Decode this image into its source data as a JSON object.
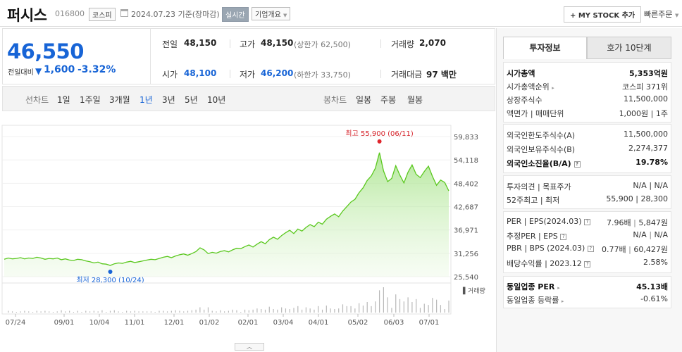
{
  "header": {
    "company_name": "퍼시스",
    "stock_code": "016800",
    "market": "코스피",
    "base_date": "2024.07.23 기준(장마감)",
    "realtime_label": "실시간",
    "company_info_label": "기업개요",
    "mystock_label": "+ MY STOCK 추가",
    "quick_order_label": "빠른주문"
  },
  "price": {
    "current": "46,550",
    "change_label": "전일대비",
    "change_arrow": "▼",
    "change_amount": "1,600",
    "change_pct": "-3.32%"
  },
  "quote": {
    "prev_close": {
      "label": "전일",
      "value": "48,150"
    },
    "high": {
      "label": "고가",
      "value": "48,150",
      "sub": "(상한가 62,500)"
    },
    "volume": {
      "label": "거래량",
      "value": "2,070"
    },
    "open": {
      "label": "시가",
      "value": "48,100"
    },
    "low": {
      "label": "저가",
      "value": "46,200",
      "sub": "(하한가 33,750)"
    },
    "trade_amount": {
      "label": "거래대금",
      "value": "97 백만"
    }
  },
  "period_tabs": {
    "line_label": "선차트",
    "line": [
      "1일",
      "1주일",
      "3개월",
      "1년",
      "3년",
      "5년",
      "10년"
    ],
    "active": "1년",
    "candle_label": "봉차트",
    "candle": [
      "일봉",
      "주봉",
      "월봉"
    ]
  },
  "chart_data": {
    "type": "area",
    "y_ticks": [
      "59,833",
      "54,118",
      "48,402",
      "42,687",
      "36,971",
      "31,256",
      "25,540"
    ],
    "ylim": [
      25540,
      59833
    ],
    "x_ticks": [
      "07/24",
      "09/01",
      "10/04",
      "11/01",
      "12/01",
      "01/02",
      "02/01",
      "03/04",
      "04/01",
      "05/02",
      "06/03",
      "07/01"
    ],
    "high_annotation": "최고 55,900 (06/11)",
    "low_annotation": "최저 28,300 (10/24)",
    "volume_label": "▌거래량",
    "series": [
      {
        "values": [
          29800,
          30100,
          29900,
          30000,
          30200,
          29900,
          30100,
          30000,
          30300,
          30100,
          29800,
          30000,
          29900,
          30100,
          29700,
          29900,
          29600,
          29500,
          29800,
          29700,
          29400,
          29200,
          28900,
          29100,
          28700,
          28600,
          28300,
          28700,
          28900,
          28800,
          29100,
          29300,
          29000,
          29200,
          29400,
          29600,
          29800,
          29700,
          30000,
          30300,
          30500,
          30200,
          30600,
          30900,
          31100,
          30800,
          31200,
          31700,
          32600,
          32100,
          31200,
          31500,
          31300,
          31700,
          31900,
          31600,
          32100,
          32500,
          32400,
          32900,
          33300,
          32800,
          33500,
          34100,
          33600,
          34600,
          35200,
          34700,
          35600,
          36300,
          36900,
          36100,
          37200,
          36700,
          37600,
          38300,
          37800,
          38900,
          38400,
          39600,
          40300,
          40900,
          40200,
          41600,
          42700,
          43800,
          44500,
          46100,
          47300,
          49100,
          50200,
          52100,
          55900,
          51400,
          48800,
          49600,
          52700,
          50400,
          48500,
          51100,
          52900,
          50600,
          49800,
          51300,
          52600,
          50100,
          47900,
          49200,
          48600,
          46550
        ]
      }
    ]
  },
  "right_panel": {
    "tab_invest": "투자정보",
    "tab_orderbook": "호가 10단계",
    "sec1": [
      {
        "label": "시가총액",
        "value": "5,353억원"
      },
      {
        "label": "시가총액순위",
        "value": "코스피 371위"
      },
      {
        "label": "상장주식수",
        "value": "11,500,000"
      },
      {
        "label": "액면가 | 매매단위",
        "value": "1,000원 | 1주"
      }
    ],
    "sec2": [
      {
        "label": "외국인한도주식수(A)",
        "value": "11,500,000"
      },
      {
        "label": "외국인보유주식수(B)",
        "value": "2,274,377"
      },
      {
        "label": "외국인소진율(B/A)",
        "value": "19.78%"
      }
    ],
    "sec3": [
      {
        "label": "투자의견 | 목표주가",
        "value": "N/A | N/A"
      },
      {
        "label": "52주최고 | 최저",
        "value": "55,900 | 28,300"
      }
    ],
    "sec4": [
      {
        "label": "PER | EPS(2024.03)",
        "v1": "7.96배",
        "v2": "5,847원"
      },
      {
        "label": "추정PER | EPS",
        "v1": "N/A",
        "v2": "N/A"
      },
      {
        "label": "PBR | BPS (2024.03)",
        "v1": "0.77배",
        "v2": "60,427원"
      },
      {
        "label": "배당수익률 | 2023.12",
        "v1": "",
        "v2": "2.58%"
      }
    ],
    "sec5": [
      {
        "label": "동일업종 PER",
        "value": "45.13배"
      },
      {
        "label": "동일업종 등락률",
        "value": "-0.61%"
      }
    ]
  }
}
